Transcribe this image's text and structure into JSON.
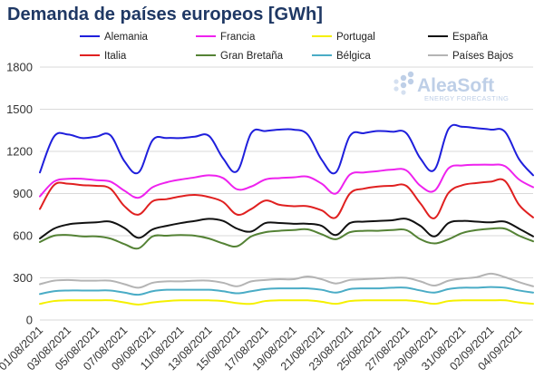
{
  "chart_data": {
    "type": "line",
    "title": "Demanda de países europeos [GWh]",
    "xlabel": "",
    "ylabel": "",
    "ylim": [
      0,
      1800
    ],
    "yticks": [
      0,
      300,
      600,
      900,
      1200,
      1500,
      1800
    ],
    "grid": true,
    "legend_position": "top",
    "x": [
      "01/08/2021",
      "02/08/2021",
      "03/08/2021",
      "04/08/2021",
      "05/08/2021",
      "06/08/2021",
      "07/08/2021",
      "08/08/2021",
      "09/08/2021",
      "10/08/2021",
      "11/08/2021",
      "12/08/2021",
      "13/08/2021",
      "14/08/2021",
      "15/08/2021",
      "16/08/2021",
      "17/08/2021",
      "18/08/2021",
      "19/08/2021",
      "20/08/2021",
      "21/08/2021",
      "22/08/2021",
      "23/08/2021",
      "24/08/2021",
      "25/08/2021",
      "26/08/2021",
      "27/08/2021",
      "28/08/2021",
      "29/08/2021",
      "30/08/2021",
      "31/08/2021",
      "01/09/2021",
      "02/09/2021",
      "03/09/2021",
      "04/09/2021",
      "05/09/2021"
    ],
    "xtick_labels": [
      "01/08/2021",
      "03/08/2021",
      "05/08/2021",
      "07/08/2021",
      "09/08/2021",
      "11/08/2021",
      "13/08/2021",
      "15/08/2021",
      "17/08/2021",
      "19/08/2021",
      "21/08/2021",
      "23/08/2021",
      "25/08/2021",
      "27/08/2021",
      "29/08/2021",
      "31/08/2021",
      "02/09/2021",
      "04/09/2021"
    ],
    "series": [
      {
        "name": "Alemania",
        "color": "#1f1fdc",
        "values": [
          1050,
          1305,
          1320,
          1295,
          1305,
          1315,
          1130,
          1050,
          1280,
          1295,
          1295,
          1305,
          1310,
          1150,
          1060,
          1330,
          1345,
          1355,
          1355,
          1320,
          1140,
          1050,
          1310,
          1330,
          1345,
          1340,
          1330,
          1150,
          1070,
          1360,
          1375,
          1365,
          1355,
          1340,
          1145,
          1030
        ]
      },
      {
        "name": "Francia",
        "color": "#ee22ee",
        "values": [
          880,
          985,
          1005,
          1005,
          995,
          985,
          920,
          870,
          945,
          980,
          1000,
          1015,
          1030,
          1010,
          930,
          950,
          1000,
          1010,
          1015,
          1020,
          970,
          900,
          1035,
          1050,
          1060,
          1070,
          1065,
          955,
          920,
          1080,
          1100,
          1105,
          1105,
          1095,
          1000,
          945
        ]
      },
      {
        "name": "Portugal",
        "color": "#f5f000",
        "values": [
          115,
          135,
          140,
          140,
          140,
          140,
          125,
          110,
          125,
          135,
          140,
          140,
          140,
          135,
          120,
          115,
          135,
          140,
          140,
          140,
          130,
          115,
          135,
          140,
          140,
          140,
          140,
          130,
          115,
          135,
          140,
          140,
          140,
          140,
          125,
          115
        ]
      },
      {
        "name": "España",
        "color": "#111111",
        "values": [
          580,
          650,
          680,
          690,
          695,
          700,
          655,
          585,
          645,
          670,
          690,
          705,
          720,
          705,
          650,
          630,
          690,
          690,
          685,
          685,
          670,
          605,
          690,
          700,
          705,
          710,
          720,
          670,
          595,
          690,
          705,
          700,
          695,
          700,
          650,
          595
        ]
      },
      {
        "name": "Italia",
        "color": "#e02020",
        "values": [
          790,
          960,
          970,
          960,
          955,
          935,
          810,
          750,
          845,
          860,
          880,
          890,
          875,
          840,
          750,
          790,
          850,
          820,
          810,
          810,
          780,
          730,
          900,
          935,
          950,
          955,
          955,
          830,
          725,
          905,
          960,
          975,
          985,
          990,
          820,
          730
        ]
      },
      {
        "name": "Gran Bretaña",
        "color": "#548235",
        "values": [
          555,
          600,
          605,
          595,
          595,
          580,
          540,
          510,
          595,
          600,
          605,
          600,
          580,
          545,
          525,
          595,
          625,
          635,
          640,
          645,
          610,
          575,
          625,
          635,
          635,
          640,
          640,
          575,
          545,
          575,
          620,
          640,
          650,
          650,
          600,
          560
        ]
      },
      {
        "name": "Bélgica",
        "color": "#4aacc6",
        "values": [
          185,
          205,
          210,
          210,
          210,
          210,
          195,
          180,
          205,
          215,
          215,
          215,
          215,
          205,
          190,
          205,
          220,
          225,
          225,
          225,
          215,
          195,
          220,
          225,
          225,
          230,
          230,
          210,
          195,
          220,
          230,
          230,
          235,
          230,
          210,
          195
        ]
      },
      {
        "name": "Países Bajos",
        "color": "#b4b4b4",
        "values": [
          255,
          280,
          285,
          280,
          280,
          280,
          255,
          230,
          265,
          275,
          275,
          280,
          280,
          265,
          240,
          275,
          285,
          290,
          290,
          310,
          290,
          260,
          285,
          290,
          295,
          300,
          300,
          275,
          245,
          280,
          295,
          305,
          330,
          305,
          270,
          240
        ]
      }
    ]
  },
  "watermark": {
    "brand": "AleaSoft",
    "tagline": "ENERGY FORECASTING",
    "brand_color": "#a9bfe0"
  }
}
